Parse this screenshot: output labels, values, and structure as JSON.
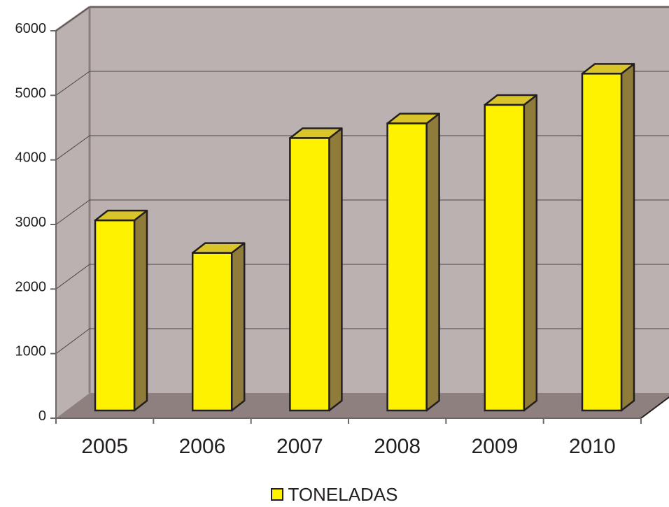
{
  "chart_data": {
    "type": "bar",
    "categories": [
      "2005",
      "2006",
      "2007",
      "2008",
      "2009",
      "2010"
    ],
    "series": [
      {
        "name": "TONELADAS",
        "values": [
          2980,
          2470,
          4270,
          4500,
          4790,
          5280
        ]
      }
    ],
    "ylim": [
      0,
      6000
    ],
    "yticks": [
      "0",
      "1000",
      "2000",
      "3000",
      "4000",
      "5000",
      "6000"
    ],
    "grid": true,
    "legend_position": "bottom",
    "colors": {
      "bar_front": "#fff200",
      "bar_side": "#8f7b3a",
      "bar_top": "#d9c52a",
      "outline": "#231f20",
      "wall": "#bcb1b1",
      "floor": "#8f8080",
      "wall_edge": "#8a7e7e"
    }
  },
  "legend": {
    "label": "TONELADAS"
  }
}
